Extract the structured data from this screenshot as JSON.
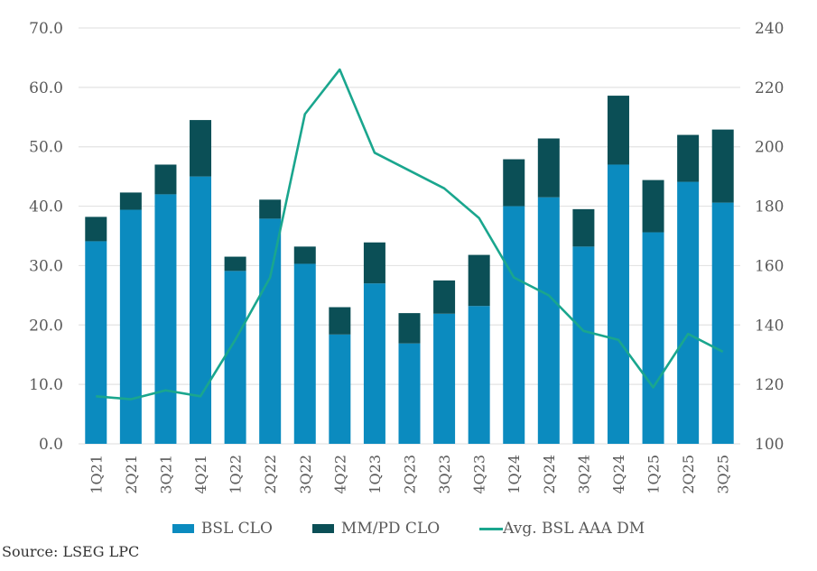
{
  "chart_data": {
    "type": "bar",
    "subtype": "stacked-bar-with-line",
    "title": "",
    "categories": [
      "1Q21",
      "2Q21",
      "3Q21",
      "4Q21",
      "1Q22",
      "2Q22",
      "3Q22",
      "4Q22",
      "1Q23",
      "2Q23",
      "3Q23",
      "4Q23",
      "1Q24",
      "2Q24",
      "3Q24",
      "4Q24",
      "1Q25",
      "2Q25",
      "3Q25"
    ],
    "series": [
      {
        "name": "BSL CLO",
        "type": "bar",
        "axis": "left",
        "color": "#0b8bbf",
        "values": [
          34.1,
          39.4,
          42.0,
          45.0,
          29.1,
          37.9,
          30.3,
          18.4,
          27.0,
          16.9,
          21.9,
          23.2,
          40.0,
          41.5,
          33.2,
          47.0,
          35.6,
          44.1,
          40.6
        ]
      },
      {
        "name": "MM/PD CLO",
        "type": "bar",
        "axis": "left",
        "color": "#0b4f56",
        "values": [
          4.1,
          2.9,
          5.0,
          9.5,
          2.4,
          3.2,
          2.9,
          4.6,
          6.9,
          5.1,
          5.6,
          8.6,
          7.9,
          9.9,
          6.3,
          11.6,
          8.8,
          7.9,
          12.3
        ]
      },
      {
        "name": "Avg. BSL AAA DM",
        "type": "line",
        "axis": "right",
        "color": "#1aa68e",
        "values": [
          116,
          115,
          118,
          116,
          135,
          156,
          211,
          226,
          198,
          192,
          186,
          176,
          156,
          150,
          138,
          135,
          119,
          137,
          131
        ]
      }
    ],
    "y_left": {
      "lim": [
        0,
        70
      ],
      "ticks": [
        "0.0",
        "10.0",
        "20.0",
        "30.0",
        "40.0",
        "50.0",
        "60.0",
        "70.0"
      ]
    },
    "y_right": {
      "lim": [
        100,
        240
      ],
      "ticks": [
        "100",
        "120",
        "140",
        "160",
        "180",
        "200",
        "220",
        "240"
      ]
    },
    "xlabel": "",
    "ylabel": "",
    "grid": true,
    "legend_position": "bottom-center"
  },
  "legend": {
    "items": [
      {
        "label": "BSL CLO",
        "color": "#0b8bbf",
        "kind": "box"
      },
      {
        "label": "MM/PD CLO",
        "color": "#0b4f56",
        "kind": "box"
      },
      {
        "label": "Avg. BSL AAA DM",
        "color": "#1aa68e",
        "kind": "line"
      }
    ]
  },
  "source": "Source: LSEG LPC"
}
